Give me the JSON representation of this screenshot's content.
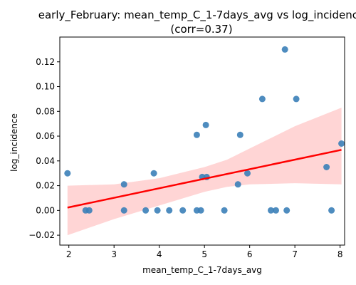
{
  "chart_data": {
    "type": "scatter",
    "title": "early_February: mean_temp_C_1-7days_avg vs log_incidence",
    "subtitle": "(corr=0.37)",
    "xlabel": "mean_temp_C_1-7days_avg",
    "ylabel": "log_incidence",
    "xlim": [
      1.8,
      8.1
    ],
    "ylim": [
      -0.028,
      0.14
    ],
    "x_ticks": [
      "2",
      "3",
      "4",
      "5",
      "6",
      "7",
      "8"
    ],
    "y_ticks": [
      "−0.02",
      "0.00",
      "0.02",
      "0.04",
      "0.06",
      "0.08",
      "0.10",
      "0.12"
    ],
    "grid": false,
    "points": [
      [
        1.97,
        0.03
      ],
      [
        2.37,
        0.0
      ],
      [
        2.45,
        0.0
      ],
      [
        3.22,
        0.021
      ],
      [
        3.22,
        0.0
      ],
      [
        3.7,
        0.0
      ],
      [
        3.88,
        0.03
      ],
      [
        3.96,
        0.0
      ],
      [
        4.22,
        0.0
      ],
      [
        4.52,
        0.0
      ],
      [
        4.83,
        0.061
      ],
      [
        4.83,
        0.0
      ],
      [
        4.92,
        0.0
      ],
      [
        4.95,
        0.027
      ],
      [
        5.03,
        0.069
      ],
      [
        5.05,
        0.027
      ],
      [
        5.44,
        0.0
      ],
      [
        5.74,
        0.021
      ],
      [
        5.79,
        0.061
      ],
      [
        5.95,
        0.03
      ],
      [
        6.28,
        0.09
      ],
      [
        6.47,
        0.0
      ],
      [
        6.58,
        0.0
      ],
      [
        6.78,
        0.13
      ],
      [
        6.82,
        0.0
      ],
      [
        7.03,
        0.09
      ],
      [
        7.7,
        0.035
      ],
      [
        7.81,
        0.0
      ],
      [
        8.03,
        0.054
      ]
    ],
    "regression": {
      "slope": 0.0077,
      "intercept": -0.0129,
      "x_range": [
        1.97,
        8.03
      ]
    },
    "confidence_band": [
      [
        1.97,
        -0.02,
        0.02
      ],
      [
        3.0,
        -0.007,
        0.021
      ],
      [
        4.0,
        0.004,
        0.026
      ],
      [
        5.0,
        0.015,
        0.035
      ],
      [
        5.5,
        0.019,
        0.041
      ],
      [
        6.0,
        0.021,
        0.05
      ],
      [
        7.0,
        0.022,
        0.068
      ],
      [
        8.03,
        0.021,
        0.083
      ]
    ],
    "colors": {
      "points": "#3b7fb8",
      "line": "#ff0000",
      "band": "#ffb3b3"
    }
  }
}
